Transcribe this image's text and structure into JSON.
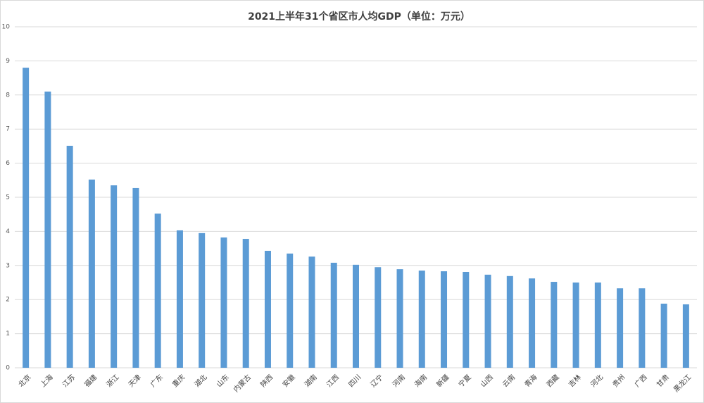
{
  "chart_data": {
    "type": "bar",
    "title": "2021上半年31个省区市人均GDP（单位：万元）",
    "categories": [
      "北京",
      "上海",
      "江苏",
      "福建",
      "浙江",
      "天津",
      "广东",
      "重庆",
      "湖北",
      "山东",
      "内蒙古",
      "陕西",
      "安徽",
      "湖南",
      "江西",
      "四川",
      "辽宁",
      "河南",
      "海南",
      "新疆",
      "宁夏",
      "山西",
      "云南",
      "青海",
      "西藏",
      "吉林",
      "河北",
      "贵州",
      "广西",
      "甘肃",
      "黑龙江"
    ],
    "values": [
      8.8,
      8.1,
      6.51,
      5.52,
      5.35,
      5.27,
      4.52,
      4.03,
      3.95,
      3.82,
      3.78,
      3.43,
      3.35,
      3.26,
      3.08,
      3.02,
      2.95,
      2.89,
      2.85,
      2.83,
      2.81,
      2.73,
      2.69,
      2.62,
      2.52,
      2.5,
      2.5,
      2.33,
      2.33,
      1.88,
      1.86
    ],
    "color": "#5b9bd5",
    "ylim": [
      0,
      10
    ],
    "yticks": [
      0,
      1,
      2,
      3,
      4,
      5,
      6,
      7,
      8,
      9,
      10
    ],
    "grid": true
  }
}
